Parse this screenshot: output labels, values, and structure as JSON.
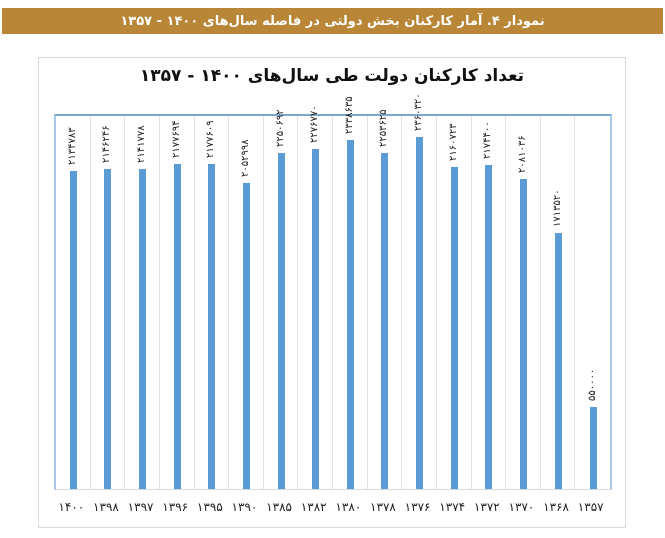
{
  "header": {
    "title": "نمودار ۴. آمار کارکنان بخش دولتی در فاصله سال‌های ۱۴۰۰ - ۱۳۵۷"
  },
  "colors": {
    "header_bg": "#b98637",
    "bar": "#5b9bd5",
    "plot_border": "#79a8d4"
  },
  "chart_data": {
    "type": "bar",
    "title": "تعداد کارکنان دولت طی سال‌های ۱۴۰۰ - ۱۳۵۷",
    "xlabel": "",
    "ylabel": "",
    "ylim": [
      0,
      2500000
    ],
    "grid": true,
    "legend": null,
    "categories": [
      "1400",
      "1398",
      "1397",
      "1396",
      "1395",
      "1390",
      "1385",
      "1382",
      "1380",
      "1378",
      "1376",
      "1374",
      "1372",
      "1370",
      "1368",
      "1357"
    ],
    "category_labels_fa": [
      "۱۴۰۰",
      "۱۳۹۸",
      "۱۳۹۷",
      "۱۳۹۶",
      "۱۳۹۵",
      "۱۳۹۰",
      "۱۳۸۵",
      "۱۳۸۲",
      "۱۳۸۰",
      "۱۳۷۸",
      "۱۳۷۶",
      "۱۳۷۴",
      "۱۳۷۲",
      "۱۳۷۰",
      "۱۳۶۸",
      "۱۳۵۷"
    ],
    "values": [
      2134783,
      2146246,
      2141778,
      2177694,
      2177609,
      2052998,
      2250692,
      2276770,
      2338635,
      2253625,
      2360320,
      2160723,
      2174400,
      2081036,
      1713520,
      550000
    ],
    "value_labels_fa": [
      "۲۱۳۴۷۸۳",
      "۲۱۴۶۲۴۶",
      "۲۱۴۱۷۷۸",
      "۲۱۷۷۶۹۴",
      "۲۱۷۷۶۰۹",
      "۲۰۵۲۹۹۸",
      "۲۲۵۰۶۹۲",
      "۲۲۷۶۷۷۰",
      "۲۳۳۸۶۳۵",
      "۲۲۵۳۶۲۵",
      "۲۳۶۰۳۲۰",
      "۲۱۶۰۷۲۳",
      "۲۱۷۴۴۰۰",
      "۲۰۸۱۰۳۶",
      "۱۷۱۳۵۲۰",
      "۵۵۰۰۰۰"
    ]
  }
}
